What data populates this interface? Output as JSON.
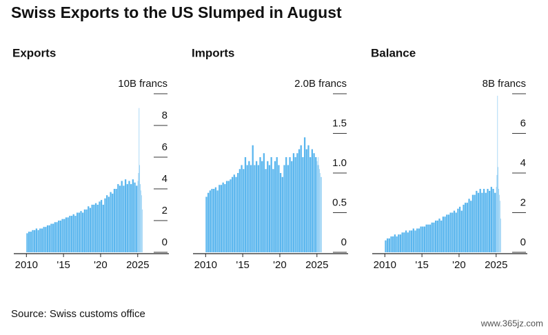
{
  "title": "Swiss Exports to the US Slumped in August",
  "source": "Source: Swiss customs office",
  "watermark": "www.365jz.com",
  "chart_data": [
    {
      "type": "bar",
      "title": "Exports",
      "color": "#5ab6ee",
      "x": [
        2010,
        2010.25,
        2010.5,
        2010.75,
        2011,
        2011.25,
        2011.5,
        2011.75,
        2012,
        2012.25,
        2012.5,
        2012.75,
        2013,
        2013.25,
        2013.5,
        2013.75,
        2014,
        2014.25,
        2014.5,
        2014.75,
        2015,
        2015.25,
        2015.5,
        2015.75,
        2016,
        2016.25,
        2016.5,
        2016.75,
        2017,
        2017.25,
        2017.5,
        2017.75,
        2018,
        2018.25,
        2018.5,
        2018.75,
        2019,
        2019.25,
        2019.5,
        2019.75,
        2020,
        2020.25,
        2020.5,
        2020.75,
        2021,
        2021.25,
        2021.5,
        2021.75,
        2022,
        2022.25,
        2022.5,
        2022.75,
        2023,
        2023.25,
        2023.5,
        2023.75,
        2024,
        2024.25,
        2024.5,
        2024.75,
        2025,
        2025.08,
        2025.17,
        2025.25,
        2025.33,
        2025.42,
        2025.5,
        2025.58
      ],
      "values": [
        1.2,
        1.3,
        1.3,
        1.4,
        1.4,
        1.5,
        1.4,
        1.5,
        1.5,
        1.6,
        1.6,
        1.7,
        1.7,
        1.8,
        1.8,
        1.9,
        1.9,
        2.0,
        2.0,
        2.1,
        2.1,
        2.2,
        2.2,
        2.3,
        2.3,
        2.4,
        2.3,
        2.5,
        2.5,
        2.6,
        2.5,
        2.7,
        2.7,
        2.9,
        2.8,
        3.0,
        3.0,
        3.1,
        3.0,
        3.2,
        3.3,
        3.0,
        3.4,
        3.6,
        3.5,
        3.8,
        3.7,
        4.0,
        4.0,
        4.3,
        4.2,
        4.5,
        4.2,
        4.6,
        4.3,
        4.5,
        4.3,
        4.6,
        4.4,
        4.2,
        4.5,
        5.0,
        9.1,
        5.5,
        4.3,
        3.9,
        3.6,
        2.7
      ],
      "xlim": [
        2008.3,
        2029.2
      ],
      "xticks": [
        2010,
        {
          "value": 2015,
          "label": "'15"
        },
        {
          "value": 2020,
          "label": "'20"
        },
        2025
      ],
      "ylim": [
        0,
        10
      ],
      "yticks": [
        0,
        2,
        4,
        6,
        8,
        {
          "value": 10,
          "label": "10B francs"
        }
      ]
    },
    {
      "type": "bar",
      "title": "Imports",
      "color": "#5ab6ee",
      "x": [
        2010,
        2010.25,
        2010.5,
        2010.75,
        2011,
        2011.25,
        2011.5,
        2011.75,
        2012,
        2012.25,
        2012.5,
        2012.75,
        2013,
        2013.25,
        2013.5,
        2013.75,
        2014,
        2014.25,
        2014.5,
        2014.75,
        2015,
        2015.25,
        2015.5,
        2015.75,
        2016,
        2016.25,
        2016.5,
        2016.75,
        2017,
        2017.25,
        2017.5,
        2017.75,
        2018,
        2018.25,
        2018.5,
        2018.75,
        2019,
        2019.25,
        2019.5,
        2019.75,
        2020,
        2020.25,
        2020.5,
        2020.75,
        2021,
        2021.25,
        2021.5,
        2021.75,
        2022,
        2022.25,
        2022.5,
        2022.75,
        2023,
        2023.25,
        2023.5,
        2023.75,
        2024,
        2024.25,
        2024.5,
        2024.75,
        2025,
        2025.08,
        2025.17,
        2025.25,
        2025.33,
        2025.42,
        2025.5,
        2025.58
      ],
      "values": [
        0.7,
        0.75,
        0.78,
        0.8,
        0.8,
        0.82,
        0.78,
        0.85,
        0.85,
        0.88,
        0.86,
        0.9,
        0.9,
        0.92,
        0.95,
        0.98,
        0.95,
        1.0,
        1.05,
        1.1,
        1.05,
        1.2,
        1.1,
        1.15,
        1.1,
        1.35,
        1.1,
        1.15,
        1.1,
        1.2,
        1.15,
        1.25,
        1.05,
        1.15,
        1.1,
        1.2,
        1.05,
        1.15,
        1.2,
        1.1,
        1.0,
        0.95,
        1.1,
        1.2,
        1.1,
        1.2,
        1.15,
        1.25,
        1.2,
        1.25,
        1.3,
        1.35,
        1.2,
        1.45,
        1.3,
        1.35,
        1.2,
        1.3,
        1.25,
        1.2,
        1.15,
        1.1,
        1.2,
        1.1,
        1.05,
        1.0,
        0.95,
        0.95
      ],
      "xlim": [
        2008.3,
        2029.2
      ],
      "xticks": [
        2010,
        {
          "value": 2015,
          "label": "'15"
        },
        {
          "value": 2020,
          "label": "'20"
        },
        2025
      ],
      "ylim": [
        0,
        2
      ],
      "yticks": [
        0,
        0.5,
        {
          "value": 1,
          "label": "1.0"
        },
        1.5,
        {
          "value": 2,
          "label": "2.0B francs"
        }
      ]
    },
    {
      "type": "bar",
      "title": "Balance",
      "color": "#5ab6ee",
      "x": [
        2010,
        2010.25,
        2010.5,
        2010.75,
        2011,
        2011.25,
        2011.5,
        2011.75,
        2012,
        2012.25,
        2012.5,
        2012.75,
        2013,
        2013.25,
        2013.5,
        2013.75,
        2014,
        2014.25,
        2014.5,
        2014.75,
        2015,
        2015.25,
        2015.5,
        2015.75,
        2016,
        2016.25,
        2016.5,
        2016.75,
        2017,
        2017.25,
        2017.5,
        2017.75,
        2018,
        2018.25,
        2018.5,
        2018.75,
        2019,
        2019.25,
        2019.5,
        2019.75,
        2020,
        2020.25,
        2020.5,
        2020.75,
        2021,
        2021.25,
        2021.5,
        2021.75,
        2022,
        2022.25,
        2022.5,
        2022.75,
        2023,
        2023.25,
        2023.5,
        2023.75,
        2024,
        2024.25,
        2024.5,
        2024.75,
        2025,
        2025.08,
        2025.17,
        2025.25,
        2025.33,
        2025.42,
        2025.5,
        2025.58
      ],
      "values": [
        0.6,
        0.7,
        0.7,
        0.8,
        0.8,
        0.9,
        0.8,
        0.9,
        0.9,
        1.0,
        1.0,
        1.1,
        1.0,
        1.1,
        1.1,
        1.2,
        1.1,
        1.2,
        1.2,
        1.3,
        1.3,
        1.3,
        1.4,
        1.4,
        1.4,
        1.5,
        1.5,
        1.6,
        1.6,
        1.7,
        1.6,
        1.8,
        1.8,
        1.9,
        1.9,
        2.0,
        2.0,
        2.1,
        2.0,
        2.2,
        2.3,
        2.1,
        2.4,
        2.5,
        2.5,
        2.7,
        2.6,
        2.9,
        2.9,
        3.1,
        3.0,
        3.2,
        3.0,
        3.2,
        3.0,
        3.2,
        3.1,
        3.3,
        3.2,
        3.0,
        3.3,
        3.9,
        7.9,
        4.3,
        3.2,
        2.9,
        2.6,
        1.7
      ],
      "xlim": [
        2008.3,
        2029.2
      ],
      "xticks": [
        2010,
        {
          "value": 2015,
          "label": "'15"
        },
        {
          "value": 2020,
          "label": "'20"
        },
        2025
      ],
      "ylim": [
        0,
        8
      ],
      "yticks": [
        0,
        2,
        4,
        6,
        {
          "value": 8,
          "label": "8B francs"
        }
      ]
    }
  ]
}
